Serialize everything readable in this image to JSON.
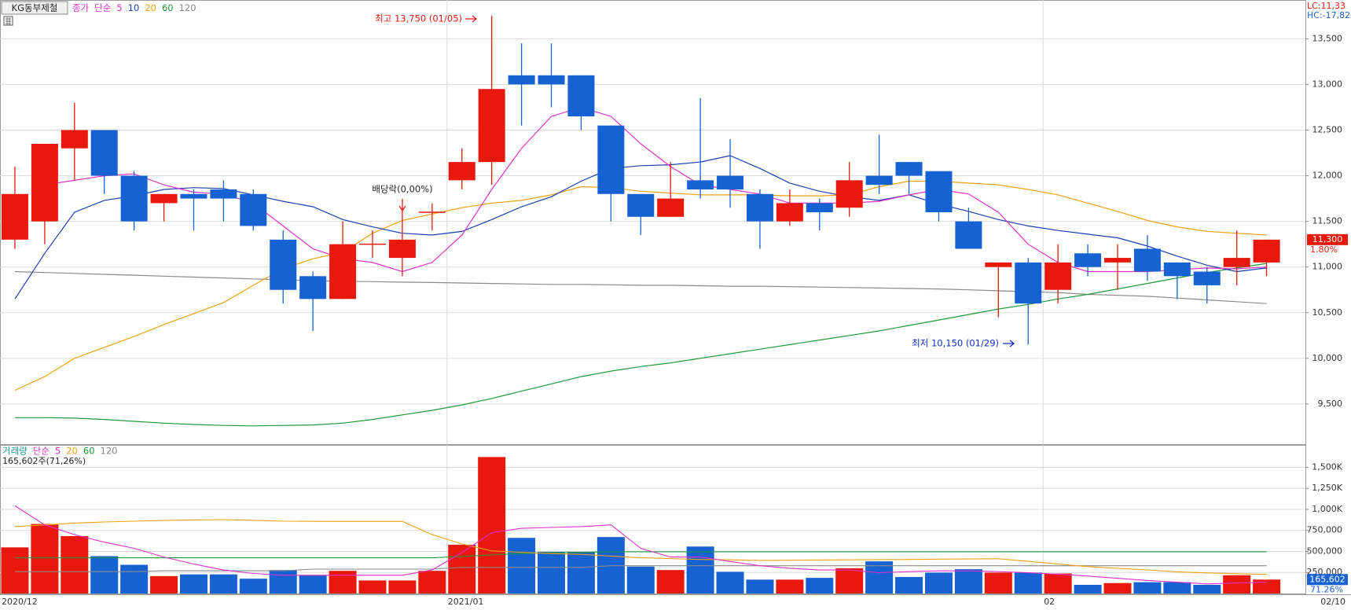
{
  "chart_data": {
    "type": "candlestick",
    "title": "KG동부제철",
    "legend_prefix": "종가",
    "method": "단순",
    "categories": [
      "2020/12",
      null,
      null,
      null,
      null,
      null,
      null,
      null,
      null,
      null,
      null,
      null,
      null,
      null,
      null,
      "2021/01",
      null,
      null,
      null,
      null,
      null,
      null,
      null,
      null,
      null,
      null,
      null,
      null,
      null,
      null,
      null,
      null,
      null,
      null,
      null,
      "02",
      null,
      null,
      null,
      null,
      null,
      null,
      "02/10"
    ],
    "open": [
      11300,
      11500,
      12300,
      12500,
      12000,
      11700,
      11800,
      11850,
      11800,
      11300,
      10900,
      10650,
      11250,
      11100,
      11600,
      11950,
      12150,
      13100,
      13100,
      13100,
      12550,
      11800,
      11550,
      11950,
      12000,
      11800,
      11500,
      11700,
      11650,
      12000,
      12150,
      12050,
      11500,
      11000,
      11050,
      10750,
      11150,
      11050,
      11200,
      11050,
      10950,
      11000,
      11050
    ],
    "high": [
      12100,
      12350,
      12800,
      12500,
      12050,
      11800,
      11850,
      11950,
      11850,
      11400,
      10950,
      11500,
      11400,
      11650,
      11700,
      12300,
      13750,
      13450,
      13450,
      13100,
      12550,
      11800,
      12150,
      12850,
      12400,
      11850,
      11850,
      11750,
      12150,
      12450,
      12150,
      12050,
      11650,
      11050,
      11100,
      11250,
      11250,
      11250,
      11350,
      11050,
      11000,
      11400,
      11300
    ],
    "low": [
      11200,
      11250,
      11950,
      11800,
      11400,
      11500,
      11400,
      11500,
      11400,
      10600,
      10300,
      10650,
      11100,
      10900,
      11400,
      11850,
      11900,
      12550,
      12750,
      12500,
      11500,
      11350,
      11550,
      11750,
      11650,
      11200,
      11450,
      11400,
      11550,
      11800,
      11800,
      11500,
      11200,
      10450,
      10150,
      10600,
      10900,
      10750,
      10850,
      10650,
      10600,
      10800,
      10900
    ],
    "close": [
      11800,
      12350,
      12500,
      12000,
      11500,
      11800,
      11750,
      11750,
      11450,
      10750,
      10650,
      11250,
      11250,
      11300,
      11600,
      12150,
      12950,
      13000,
      13000,
      12650,
      11800,
      11550,
      11750,
      11850,
      11850,
      11500,
      11700,
      11600,
      11950,
      11900,
      12000,
      11600,
      11200,
      11050,
      10600,
      11050,
      11000,
      11100,
      10950,
      10900,
      10800,
      11100,
      11300
    ],
    "up_color": "#e8190c",
    "down_color": "#1662d2",
    "ylim": [
      9060,
      13925
    ],
    "yticks": [
      {
        "value": 9500,
        "label": "9,500"
      },
      {
        "value": 10000,
        "label": "10,000"
      },
      {
        "value": 10500,
        "label": "10,500"
      },
      {
        "value": 11000,
        "label": "11,000"
      },
      {
        "value": 11500,
        "label": "11,500"
      },
      {
        "value": 12000,
        "label": "12,000"
      },
      {
        "value": 12500,
        "label": "12,500"
      },
      {
        "value": 13000,
        "label": "13,000"
      },
      {
        "value": 13500,
        "label": "13,500"
      }
    ],
    "grid": true,
    "moving_averages": [
      {
        "name": "5",
        "color": "#e030c8",
        "values": [
          null,
          11900,
          11950,
          12000,
          12020,
          11900,
          11820,
          11800,
          11700,
          11450,
          11200,
          11090,
          11050,
          10950,
          11050,
          11350,
          11850,
          12300,
          12650,
          12750,
          12650,
          12350,
          12100,
          11900,
          11850,
          11800,
          11700,
          11700,
          11700,
          11720,
          11790,
          11850,
          11800,
          11600,
          11250,
          11050,
          10950,
          10950,
          10950,
          10970,
          10990,
          10980,
          11000
        ]
      },
      {
        "name": "10",
        "color": "#1a3fae",
        "values": [
          10650,
          11150,
          11600,
          11730,
          11780,
          11850,
          11870,
          11860,
          11790,
          11720,
          11660,
          11520,
          11440,
          11370,
          11350,
          11390,
          11520,
          11660,
          11770,
          11940,
          12080,
          12110,
          12120,
          12150,
          12220,
          12080,
          11920,
          11830,
          11770,
          11730,
          11790,
          11690,
          11610,
          11520,
          11450,
          11400,
          11360,
          11320,
          11230,
          11120,
          11020,
          10950,
          10990
        ]
      },
      {
        "name": "20",
        "color": "#f0a010",
        "values": [
          9650,
          9800,
          10000,
          10120,
          10240,
          10370,
          10490,
          10610,
          10800,
          10980,
          11090,
          11160,
          11370,
          11510,
          11580,
          11650,
          11700,
          11730,
          11790,
          11880,
          11870,
          11830,
          11810,
          11790,
          11790,
          11790,
          11780,
          11780,
          11790,
          11880,
          11940,
          11940,
          11920,
          11900,
          11850,
          11790,
          11700,
          11610,
          11510,
          11440,
          11390,
          11370,
          11350
        ]
      },
      {
        "name": "60",
        "color": "#1e9a3a",
        "values": [
          9350,
          9350,
          9345,
          9330,
          9310,
          9290,
          9275,
          9265,
          9260,
          9265,
          9270,
          9290,
          9330,
          9380,
          9430,
          9490,
          9560,
          9640,
          9720,
          9800,
          9860,
          9910,
          9950,
          10000,
          10050,
          10100,
          10150,
          10200,
          10250,
          10300,
          10360,
          10420,
          10480,
          10540,
          10590,
          10650,
          10700,
          10760,
          10820,
          10880,
          10940,
          10990,
          11040
        ]
      },
      {
        "name": "120",
        "color": "#8a8a8a",
        "values": [
          10950,
          10940,
          10930,
          10920,
          10910,
          10900,
          10890,
          10880,
          10870,
          10860,
          10850,
          10845,
          10840,
          10835,
          10830,
          10825,
          10820,
          10815,
          10810,
          10810,
          10805,
          10800,
          10800,
          10795,
          10790,
          10790,
          10785,
          10780,
          10775,
          10770,
          10765,
          10760,
          10750,
          10740,
          10730,
          10720,
          10700,
          10690,
          10680,
          10660,
          10640,
          10620,
          10600
        ]
      }
    ],
    "last_price_label": "11,300",
    "change_label": "1.80%",
    "corner_labels": [
      "LC:11,33",
      "HC:-17,82"
    ],
    "annotations": [
      "최고 13,750 (01/05)",
      "최저 10,150 (01/29)",
      "배당락(0,00%)"
    ],
    "volume": {
      "title": "거래량",
      "method": "단순",
      "summary": "165,602주(71,26%)",
      "values": [
        548000,
        826000,
        682000,
        444000,
        341000,
        207000,
        227000,
        227000,
        176000,
        279000,
        217000,
        269000,
        155000,
        155000,
        269000,
        579000,
        1622000,
        661000,
        496000,
        496000,
        671000,
        320000,
        279000,
        558000,
        258000,
        165000,
        165000,
        186000,
        300000,
        382000,
        196000,
        248000,
        289000,
        248000,
        248000,
        238000,
        103000,
        124000,
        134000,
        134000,
        103000,
        217000,
        165602
      ],
      "ylim": [
        0,
        1766000
      ],
      "yticks": [
        {
          "value": 250000,
          "label": "250,000"
        },
        {
          "value": 500000,
          "label": "500,000"
        },
        {
          "value": 750000,
          "label": "750,000"
        },
        {
          "value": 1000000,
          "label": "1,000K"
        },
        {
          "value": 1250000,
          "label": "1,250K"
        },
        {
          "value": 1500000,
          "label": "1,500K"
        }
      ],
      "last_label": "165,602",
      "last_pct": "71.26%",
      "moving_averages": [
        {
          "name": "5",
          "color": "#e030c8",
          "values": [
            1043000,
            816000,
            700000,
            610000,
            537000,
            434000,
            350000,
            279000,
            238000,
            217000,
            217000,
            217000,
            217000,
            217000,
            279000,
            486000,
            723000,
            775000,
            785000,
            795000,
            816000,
            537000,
            434000,
            434000,
            380000,
            330000,
            300000,
            279000,
            279000,
            248000,
            260000,
            269000,
            269000,
            260000,
            248000,
            230000,
            207000,
            180000,
            155000,
            135000,
            114000,
            125000,
            134000
          ]
        },
        {
          "name": "20",
          "color": "#f0a010",
          "values": [
            795000,
            815000,
            837000,
            850000,
            860000,
            868000,
            873000,
            878000,
            870000,
            860000,
            858000,
            857000,
            857000,
            857000,
            700000,
            589000,
            506000,
            490000,
            475000,
            465000,
            445000,
            424000,
            415000,
            405000,
            400000,
            393000,
            395000,
            398000,
            400000,
            403000,
            405000,
            408000,
            410000,
            413000,
            382000,
            350000,
            320000,
            300000,
            280000,
            258000,
            245000,
            235000,
            227000
          ]
        },
        {
          "name": "60",
          "color": "#1e9a3a",
          "values": [
            424000,
            424000,
            424000,
            424000,
            424000,
            424000,
            424000,
            424000,
            424000,
            424000,
            424000,
            424000,
            424000,
            424000,
            424000,
            440000,
            460000,
            475000,
            485000,
            490000,
            495000,
            496000,
            496000,
            496000,
            496000,
            496000,
            496000,
            496000,
            496000,
            496000,
            496000,
            496000,
            496000,
            496000,
            496000,
            496000,
            496000,
            496000,
            496000,
            496000,
            496000,
            496000,
            496000
          ]
        },
        {
          "name": "120",
          "color": "#8a8a8a",
          "values": [
            260000,
            260000,
            260000,
            260000,
            260000,
            270000,
            270000,
            270000,
            270000,
            270000,
            290000,
            290000,
            290000,
            290000,
            290000,
            310000,
            310000,
            310000,
            310000,
            310000,
            330000,
            330000,
            330000,
            330000,
            330000,
            330000,
            330000,
            330000,
            330000,
            330000,
            330000,
            330000,
            330000,
            330000,
            330000,
            330000,
            330000,
            330000,
            330000,
            330000,
            330000,
            330000,
            330000
          ]
        }
      ]
    }
  }
}
